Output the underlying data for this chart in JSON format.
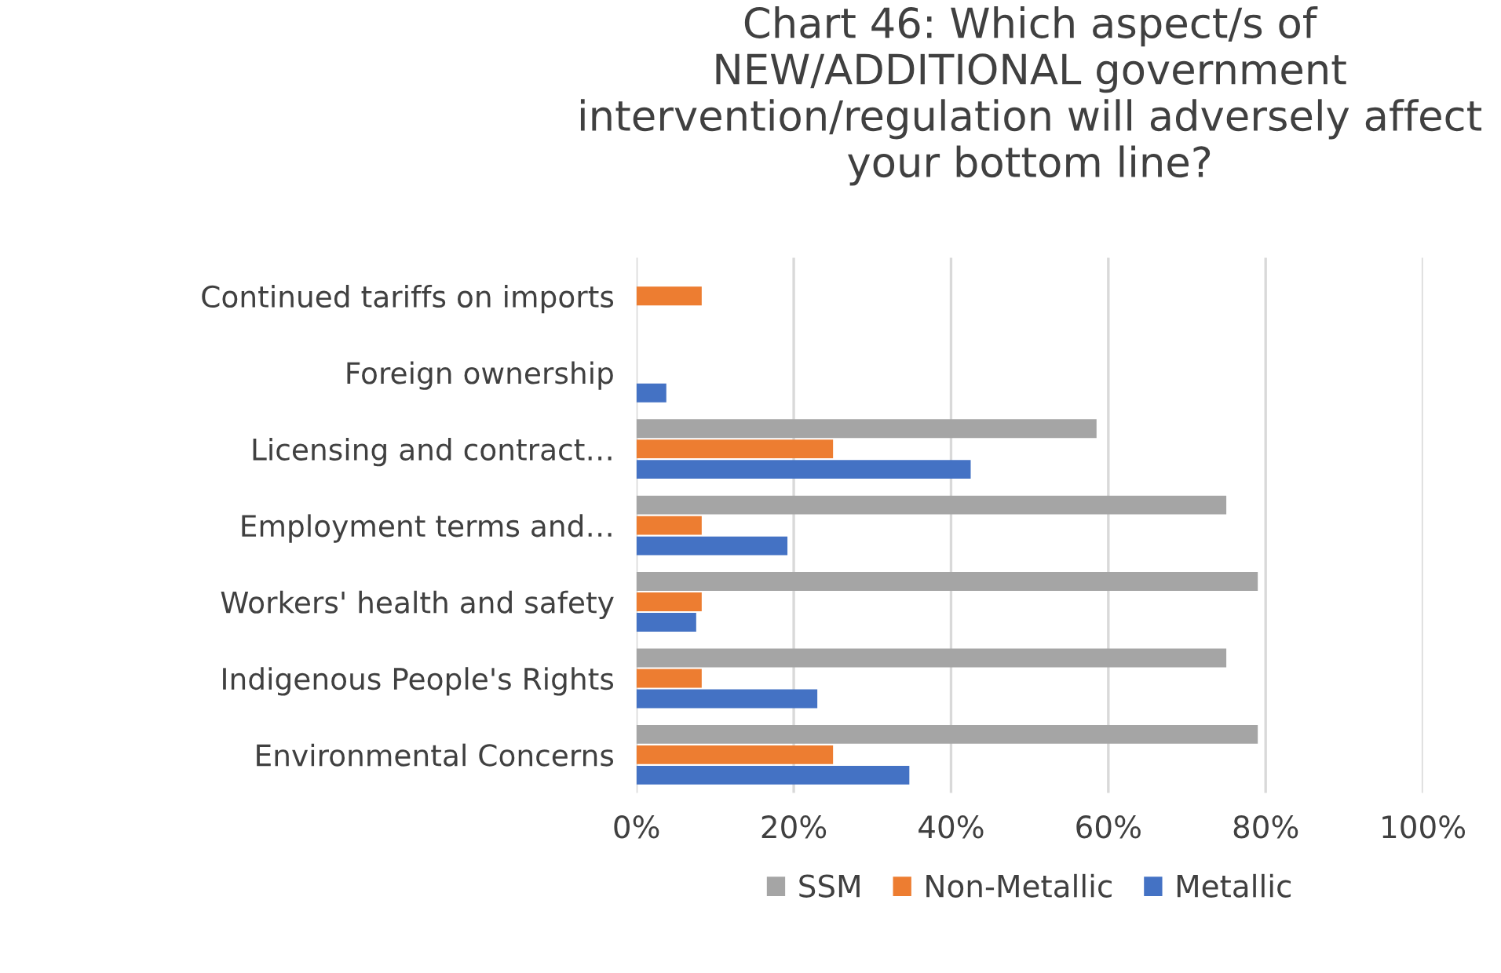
{
  "chart_data": {
    "type": "bar",
    "orientation": "horizontal",
    "title": "Chart 46: Which aspect/s of NEW/ADDITIONAL government intervention/regulation will adversely affect your bottom line?",
    "categories": [
      "Continued tariffs on imports",
      "Foreign ownership",
      "Licensing and contract…",
      "Employment terms and…",
      "Workers' health and safety",
      "Indigenous People's Rights",
      "Environmental Concerns"
    ],
    "series": [
      {
        "name": "SSM",
        "color": "#a5a5a5",
        "values": [
          null,
          null,
          58.5,
          75,
          79,
          75,
          79
        ]
      },
      {
        "name": "Non-Metallic",
        "color": "#ed7d31",
        "values": [
          8.3,
          null,
          25,
          8.3,
          8.3,
          8.3,
          25
        ]
      },
      {
        "name": "Metallic",
        "color": "#4472c4",
        "values": [
          null,
          3.8,
          42.5,
          19.2,
          7.6,
          23,
          34.7
        ]
      }
    ],
    "xlim": [
      0,
      100
    ],
    "xticks": [
      {
        "value": 0,
        "label": "0%"
      },
      {
        "value": 20,
        "label": "20%"
      },
      {
        "value": 40,
        "label": "40%"
      },
      {
        "value": 60,
        "label": "60%"
      },
      {
        "value": 80,
        "label": "80%"
      },
      {
        "value": 100,
        "label": "100%"
      }
    ],
    "grid": "x",
    "legend": "bottom"
  }
}
